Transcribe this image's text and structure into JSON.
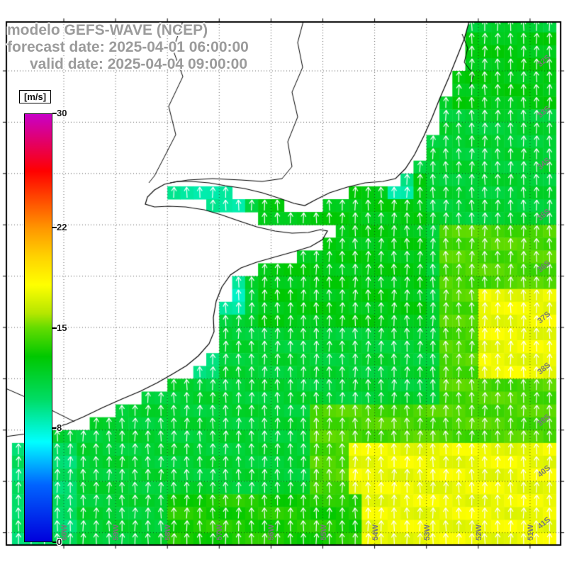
{
  "title": {
    "model_line": "modelo GEFS-WAVE (NCEP)",
    "forecast_line": "forecast date: 2025-04-01 06:00:00",
    "valid_line": "valid date: 2025-04-04 09:00:00"
  },
  "colorbar": {
    "unit_label": "[m/s]",
    "min": 0,
    "max": 30,
    "ticks": [
      "30",
      "22",
      "15",
      "8",
      "0"
    ],
    "tick_values": [
      30,
      22,
      15,
      8,
      0
    ],
    "stops": [
      [
        0,
        "#0000dc"
      ],
      [
        4,
        "#0064ff"
      ],
      [
        7,
        "#00ffff"
      ],
      [
        10,
        "#00dc64"
      ],
      [
        13,
        "#00c800"
      ],
      [
        15,
        "#64dc00"
      ],
      [
        16,
        "#b4e600"
      ],
      [
        18,
        "#ffff00"
      ],
      [
        20,
        "#ffd200"
      ],
      [
        22,
        "#ff9600"
      ],
      [
        26,
        "#ff0000"
      ],
      [
        30,
        "#c800c8"
      ]
    ]
  },
  "axes": {
    "lat_labels": [
      "32S",
      "33S",
      "34S",
      "35S",
      "36S",
      "37S",
      "38S",
      "39S",
      "40S",
      "41S"
    ],
    "lon_labels": [
      "60W",
      "59W",
      "58W",
      "57W",
      "56W",
      "55W",
      "54W",
      "53W",
      "52W",
      "51W"
    ]
  },
  "chart_data": {
    "type": "heatmap",
    "quantity": "wind speed over ocean with direction arrows",
    "units": "m/s",
    "arrow_color": "#ffffff",
    "arrow_direction": "northward",
    "base_speed": 11.5,
    "patches": [
      {
        "x": 0.45,
        "y": 0.28,
        "w": 0.3,
        "h": 0.3,
        "s": 12.5
      },
      {
        "x": 0.8,
        "y": 0.02,
        "w": 0.2,
        "h": 0.16,
        "s": 12.5
      },
      {
        "x": 0.78,
        "y": 0.38,
        "w": 0.22,
        "h": 0.34,
        "s": 14.5
      },
      {
        "x": 0.84,
        "y": 0.5,
        "w": 0.16,
        "h": 0.17,
        "s": 17.5
      },
      {
        "x": 0.55,
        "y": 0.72,
        "w": 0.45,
        "h": 0.28,
        "s": 14.5
      },
      {
        "x": 0.62,
        "y": 0.8,
        "w": 0.38,
        "h": 0.2,
        "s": 17.5
      },
      {
        "x": 0.3,
        "y": 0.9,
        "w": 0.34,
        "h": 0.1,
        "s": 13.5
      },
      {
        "x": 0.28,
        "y": 0.325,
        "w": 0.15,
        "h": 0.075,
        "s": 9.0
      },
      {
        "x": 0.37,
        "y": 0.46,
        "w": 0.05,
        "h": 0.1,
        "s": 8.5
      },
      {
        "x": 0.345,
        "y": 0.6,
        "w": 0.05,
        "h": 0.09,
        "s": 9.5
      },
      {
        "x": 0.69,
        "y": 0.285,
        "w": 0.045,
        "h": 0.05,
        "s": 9.0
      },
      {
        "x": 0.0,
        "y": 0.8,
        "w": 0.13,
        "h": 0.2,
        "s": 10.0
      }
    ]
  },
  "map_geometry": {
    "land_polygon": [
      [
        8,
        30
      ],
      [
        662,
        30
      ],
      [
        655,
        55
      ],
      [
        643,
        85
      ],
      [
        633,
        110
      ],
      [
        620,
        140
      ],
      [
        610,
        165
      ],
      [
        598,
        192
      ],
      [
        585,
        218
      ],
      [
        572,
        238
      ],
      [
        558,
        252
      ],
      [
        540,
        256
      ],
      [
        515,
        258
      ],
      [
        490,
        264
      ],
      [
        465,
        272
      ],
      [
        445,
        282
      ],
      [
        430,
        290
      ],
      [
        415,
        287
      ],
      [
        395,
        280
      ],
      [
        370,
        272
      ],
      [
        345,
        266
      ],
      [
        318,
        262
      ],
      [
        295,
        258
      ],
      [
        270,
        256
      ],
      [
        250,
        256
      ],
      [
        232,
        260
      ],
      [
        218,
        268
      ],
      [
        208,
        278
      ],
      [
        205,
        288
      ],
      [
        218,
        292
      ],
      [
        238,
        291
      ],
      [
        262,
        292
      ],
      [
        288,
        296
      ],
      [
        312,
        303
      ],
      [
        338,
        312
      ],
      [
        362,
        320
      ],
      [
        388,
        326
      ],
      [
        412,
        329
      ],
      [
        435,
        328
      ],
      [
        452,
        324
      ],
      [
        462,
        326
      ],
      [
        455,
        338
      ],
      [
        438,
        348
      ],
      [
        415,
        355
      ],
      [
        390,
        362
      ],
      [
        362,
        370
      ],
      [
        340,
        378
      ],
      [
        325,
        388
      ],
      [
        313,
        405
      ],
      [
        305,
        425
      ],
      [
        301,
        448
      ],
      [
        302,
        468
      ],
      [
        295,
        485
      ],
      [
        280,
        502
      ],
      [
        263,
        516
      ],
      [
        243,
        528
      ],
      [
        222,
        540
      ],
      [
        198,
        552
      ],
      [
        172,
        563
      ],
      [
        145,
        575
      ],
      [
        118,
        588
      ],
      [
        95,
        598
      ],
      [
        70,
        606
      ],
      [
        45,
        611
      ],
      [
        8,
        616
      ]
    ],
    "rivers": [
      [
        [
          428,
          30
        ],
        [
          420,
          60
        ],
        [
          427,
          95
        ],
        [
          412,
          130
        ],
        [
          420,
          165
        ],
        [
          406,
          200
        ],
        [
          412,
          235
        ],
        [
          398,
          252
        ],
        [
          370,
          256
        ],
        [
          340,
          254
        ],
        [
          300,
          252
        ],
        [
          265,
          254
        ],
        [
          240,
          258
        ]
      ],
      [
        [
          258,
          30
        ],
        [
          244,
          70
        ],
        [
          258,
          108
        ],
        [
          238,
          150
        ],
        [
          248,
          190
        ],
        [
          230,
          225
        ],
        [
          218,
          248
        ],
        [
          210,
          258
        ]
      ],
      [
        [
          8,
          548
        ],
        [
          40,
          562
        ],
        [
          75,
          580
        ],
        [
          105,
          595
        ]
      ],
      [
        [
          652,
          48
        ],
        [
          660,
          68
        ],
        [
          655,
          88
        ],
        [
          668,
          105
        ],
        [
          663,
          122
        ]
      ]
    ]
  }
}
